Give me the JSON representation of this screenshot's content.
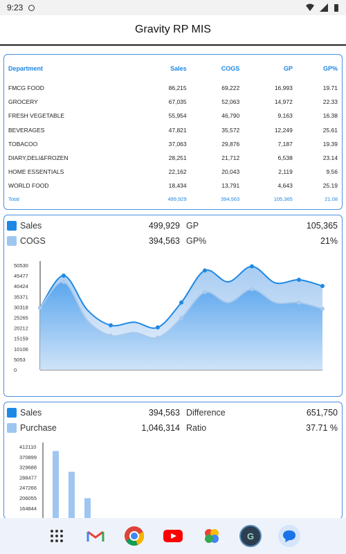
{
  "status_bar": {
    "time": "9:23"
  },
  "app_bar": {
    "title": "Gravity RP MIS"
  },
  "table": {
    "headers": [
      "Department",
      "Sales",
      "COGS",
      "GP",
      "GP%"
    ],
    "rows": [
      [
        "FMCG FOOD",
        "86,215",
        "69,222",
        "16,993",
        "19.71"
      ],
      [
        "GROCERY",
        "67,035",
        "52,063",
        "14,972",
        "22.33"
      ],
      [
        "FRESH VEGETABLE",
        "55,954",
        "46,790",
        "9,163",
        "16.38"
      ],
      [
        "BEVERAGES",
        "47,821",
        "35,572",
        "12,249",
        "25.61"
      ],
      [
        "TOBACOO",
        "37,063",
        "29,876",
        "7,187",
        "19.39"
      ],
      [
        "DIARY,DELI&FROZEN",
        "28,251",
        "21,712",
        "6,538",
        "23.14"
      ],
      [
        "HOME ESSENTIALS",
        "22,162",
        "20,043",
        "2,119",
        "9.56"
      ],
      [
        "WORLD FOOD",
        "18,434",
        "13,791",
        "4,643",
        "25.19"
      ]
    ],
    "total": [
      "Total",
      "499,929",
      "394,563",
      "105,365",
      "21.08"
    ]
  },
  "summary1": {
    "sales_label": "Sales",
    "sales_value": "499,929",
    "gp_label": "GP",
    "gp_value": "105,365",
    "cogs_label": "COGS",
    "cogs_value": "394,563",
    "gpp_label": "GP%",
    "gpp_value": "21%"
  },
  "summary2": {
    "sales_label": "Sales",
    "sales_value": "394,563",
    "diff_label": "Difference",
    "diff_value": "651,750",
    "purchase_label": "Purchase",
    "purchase_value": "1,046,314",
    "ratio_label": "Ratio",
    "ratio_value": "37.71 %"
  },
  "colors": {
    "accent": "#1e88e5",
    "light": "#90bff0",
    "border": "#4a90e2"
  },
  "nav_icons": [
    "apps-icon",
    "gmail-icon",
    "chrome-icon",
    "youtube-icon",
    "photos-icon",
    "gravity-icon",
    "messages-icon"
  ],
  "chart_data": [
    {
      "type": "area",
      "title": "",
      "y_ticks": [
        "50530",
        "45477",
        "40424",
        "35371",
        "30318",
        "25265",
        "20212",
        "15159",
        "10106",
        "5053",
        "0"
      ],
      "ylim": [
        0,
        50530
      ],
      "series": [
        {
          "name": "Sales",
          "values": [
            30000,
            45500,
            29000,
            21500,
            23000,
            20500,
            32500,
            48000,
            42500,
            50000,
            42000,
            43500,
            40500
          ]
        },
        {
          "name": "COGS",
          "values": [
            30000,
            42500,
            24000,
            16500,
            18000,
            15500,
            25000,
            37500,
            32500,
            39000,
            32500,
            32500,
            29500
          ]
        }
      ]
    },
    {
      "type": "bar",
      "title": "",
      "y_ticks": [
        "412110",
        "370899",
        "329688",
        "288477",
        "247266",
        "206055",
        "164844"
      ],
      "ylim": [
        0,
        412110
      ],
      "values": [
        394563,
        311000,
        205000
      ]
    }
  ]
}
